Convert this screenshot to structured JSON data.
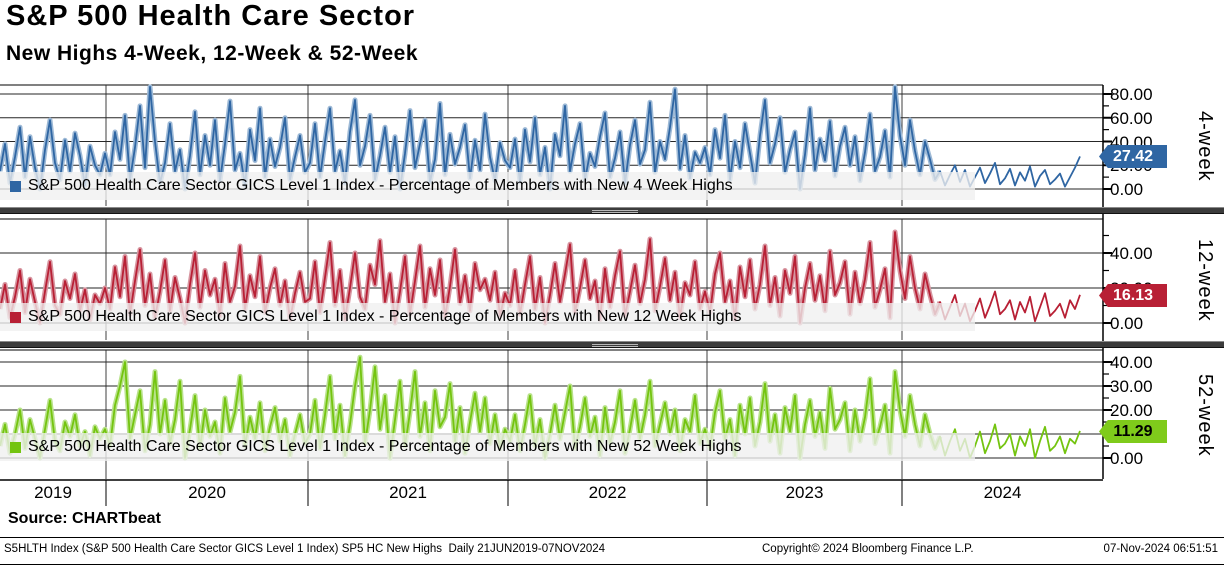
{
  "header": {
    "title": "S&P 500 Health Care Sector",
    "subtitle": "New Highs 4-Week, 12-Week & 52-Week"
  },
  "source_line": "Source: CHARTbeat",
  "footer": {
    "left": "S5HLTH Index (S&P 500 Health Care Sector GICS Level 1 Index) SP5 HC New Highs  Daily 21JUN2019-07NOV2024",
    "center": "Copyright© 2024 Bloomberg Finance L.P.",
    "right": "07-Nov-2024 06:51:51"
  },
  "x_axis": {
    "years": [
      "2019",
      "2020",
      "2021",
      "2022",
      "2023",
      "2024"
    ],
    "range": "21JUN2019-07NOV2024"
  },
  "chart_data": [
    {
      "type": "line",
      "name": "new-4-week-highs",
      "legend": "S&P 500 Health Care Sector GICS Level 1 Index - Percentage of Members with New 4 Week Highs",
      "side_label": "4-week",
      "last_value": 27.42,
      "tag_label": "27.42",
      "color": "#2f66a3",
      "color_light": "#9db9d6",
      "ylim": [
        0,
        88
      ],
      "yticks": [
        {
          "label": "80.00",
          "value": 80
        },
        {
          "label": "60.00",
          "value": 60
        },
        {
          "label": "40.00",
          "value": 40
        },
        {
          "label": "20.00",
          "value": 20
        },
        {
          "label": "0.00",
          "value": 0
        }
      ],
      "minor_ticks": [
        70,
        50,
        30,
        10
      ],
      "values": [
        15,
        38,
        5,
        27,
        52,
        10,
        44,
        18,
        0,
        33,
        58,
        22,
        8,
        41,
        15,
        47,
        28,
        3,
        36,
        20,
        12,
        30,
        12,
        48,
        25,
        62,
        8,
        35,
        70,
        18,
        86,
        40,
        5,
        22,
        55,
        15,
        33,
        0,
        28,
        65,
        12,
        45,
        20,
        58,
        7,
        38,
        74,
        16,
        30,
        3,
        50,
        24,
        68,
        10,
        42,
        19,
        35,
        60,
        8,
        27,
        45,
        14,
        22,
        55,
        10,
        40,
        68,
        15,
        32,
        5,
        48,
        75,
        20,
        36,
        62,
        8,
        28,
        52,
        14,
        44,
        0,
        30,
        66,
        18,
        38,
        58,
        6,
        25,
        72,
        12,
        46,
        21,
        35,
        54,
        9,
        41,
        16,
        63,
        27,
        7,
        39,
        24,
        18,
        42,
        6,
        50,
        23,
        60,
        12,
        35,
        0,
        46,
        28,
        70,
        15,
        38,
        55,
        8,
        30,
        19,
        44,
        64,
        10,
        26,
        48,
        5,
        37,
        58,
        21,
        33,
        73,
        14,
        40,
        25,
        52,
        84,
        17,
        45,
        9,
        31,
        22,
        35,
        12,
        50,
        26,
        62,
        8,
        40,
        18,
        55,
        30,
        5,
        45,
        75,
        22,
        38,
        60,
        14,
        33,
        48,
        0,
        29,
        68,
        16,
        42,
        24,
        57,
        11,
        36,
        52,
        20,
        44,
        7,
        31,
        63,
        15,
        27,
        49,
        10,
        86,
        45,
        20,
        58,
        32,
        12,
        40,
        25,
        8,
        15,
        3,
        12,
        20,
        6,
        16,
        2,
        10,
        18,
        5,
        13,
        22,
        4,
        9,
        17,
        3,
        14,
        7,
        19,
        2,
        11,
        16,
        4,
        8,
        13,
        2,
        10,
        18,
        27.42
      ]
    },
    {
      "type": "line",
      "name": "new-12-week-highs",
      "legend": "S&P 500 Health Care Sector GICS Level 1 Index - Percentage of Members with New 12 Week Highs",
      "side_label": "12-week",
      "last_value": 16.13,
      "tag_label": "16.13",
      "color": "#b82035",
      "color_light": "#d795a0",
      "ylim": [
        0,
        55
      ],
      "yticks": [
        {
          "label": "40.00",
          "value": 40
        },
        {
          "label": "20.00",
          "value": 20
        },
        {
          "label": "0.00",
          "value": 0
        }
      ],
      "minor_ticks": [
        50,
        30,
        10
      ],
      "values": [
        8,
        22,
        3,
        15,
        30,
        6,
        25,
        12,
        0,
        18,
        35,
        10,
        5,
        24,
        14,
        28,
        7,
        19,
        2,
        16,
        11,
        20,
        8,
        32,
        15,
        38,
        5,
        24,
        42,
        10,
        28,
        3,
        18,
        36,
        7,
        26,
        14,
        0,
        22,
        40,
        9,
        30,
        16,
        25,
        4,
        34,
        12,
        21,
        44,
        8,
        27,
        15,
        38,
        6,
        20,
        31,
        10,
        24,
        2,
        17,
        29,
        12,
        14,
        35,
        6,
        26,
        46,
        10,
        30,
        2,
        20,
        40,
        15,
        8,
        33,
        22,
        47,
        12,
        28,
        0,
        18,
        38,
        5,
        24,
        44,
        9,
        31,
        16,
        36,
        3,
        21,
        42,
        11,
        27,
        7,
        34,
        19,
        25,
        13,
        29,
        4,
        17,
        10,
        30,
        5,
        22,
        38,
        8,
        26,
        0,
        16,
        34,
        12,
        28,
        45,
        6,
        20,
        36,
        14,
        24,
        2,
        31,
        9,
        27,
        41,
        4,
        18,
        33,
        11,
        25,
        48,
        7,
        21,
        37,
        13,
        29,
        3,
        23,
        16,
        35,
        8,
        18,
        6,
        28,
        40,
        12,
        24,
        2,
        32,
        15,
        36,
        8,
        22,
        44,
        10,
        26,
        4,
        30,
        17,
        38,
        0,
        20,
        34,
        13,
        27,
        7,
        41,
        16,
        23,
        35,
        5,
        29,
        11,
        25,
        46,
        9,
        19,
        31,
        3,
        52,
        30,
        14,
        38,
        20,
        8,
        28,
        16,
        5,
        12,
        2,
        9,
        16,
        4,
        11,
        1,
        7,
        14,
        3,
        10,
        18,
        5,
        8,
        13,
        2,
        12,
        6,
        15,
        1,
        9,
        17,
        4,
        7,
        11,
        3,
        13,
        8,
        16.13
      ]
    },
    {
      "type": "line",
      "name": "new-52-week-highs",
      "legend": "S&P 500 Health Care Sector GICS Level 1 Index - Percentage of Members with New 52 Week Highs",
      "side_label": "52-week",
      "last_value": 11.29,
      "tag_label": "11.29",
      "color": "#74c410",
      "color_light": "#b8e28a",
      "ylim": [
        0,
        45
      ],
      "yticks": [
        {
          "label": "40.00",
          "value": 40
        },
        {
          "label": "30.00",
          "value": 30
        },
        {
          "label": "20.00",
          "value": 20
        },
        {
          "label": "10.00",
          "value": 10
        },
        {
          "label": "0.00",
          "value": 0
        }
      ],
      "minor_ticks": [
        45,
        35,
        25,
        15,
        5
      ],
      "values": [
        5,
        14,
        2,
        10,
        20,
        4,
        16,
        8,
        0,
        12,
        24,
        7,
        3,
        15,
        9,
        18,
        5,
        11,
        1,
        13,
        8,
        12,
        5,
        22,
        30,
        40,
        8,
        18,
        28,
        3,
        14,
        36,
        10,
        24,
        6,
        16,
        32,
        0,
        12,
        26,
        4,
        20,
        9,
        15,
        2,
        25,
        11,
        19,
        34,
        5,
        17,
        8,
        23,
        3,
        13,
        21,
        7,
        16,
        1,
        10,
        18,
        6,
        10,
        24,
        4,
        18,
        34,
        8,
        22,
        1,
        14,
        30,
        42,
        6,
        20,
        38,
        12,
        26,
        0,
        16,
        32,
        5,
        19,
        36,
        9,
        23,
        3,
        28,
        13,
        17,
        31,
        7,
        21,
        2,
        15,
        27,
        11,
        25,
        6,
        18,
        4,
        12,
        7,
        18,
        3,
        14,
        26,
        5,
        16,
        0,
        10,
        22,
        8,
        19,
        30,
        4,
        13,
        25,
        9,
        17,
        1,
        21,
        6,
        15,
        28,
        2,
        12,
        24,
        8,
        18,
        32,
        5,
        14,
        23,
        10,
        20,
        3,
        16,
        11,
        26,
        6,
        12,
        4,
        19,
        28,
        8,
        16,
        1,
        22,
        10,
        25,
        5,
        15,
        31,
        7,
        18,
        2,
        21,
        11,
        26,
        0,
        14,
        24,
        9,
        19,
        4,
        29,
        12,
        16,
        23,
        3,
        20,
        7,
        17,
        33,
        6,
        13,
        22,
        2,
        36,
        20,
        9,
        26,
        14,
        5,
        18,
        10,
        4,
        9,
        1,
        7,
        12,
        3,
        8,
        0,
        5,
        11,
        2,
        7,
        14,
        4,
        6,
        10,
        1,
        9,
        5,
        12,
        0,
        7,
        13,
        3,
        5,
        9,
        2,
        8,
        6,
        11.29
      ]
    }
  ]
}
